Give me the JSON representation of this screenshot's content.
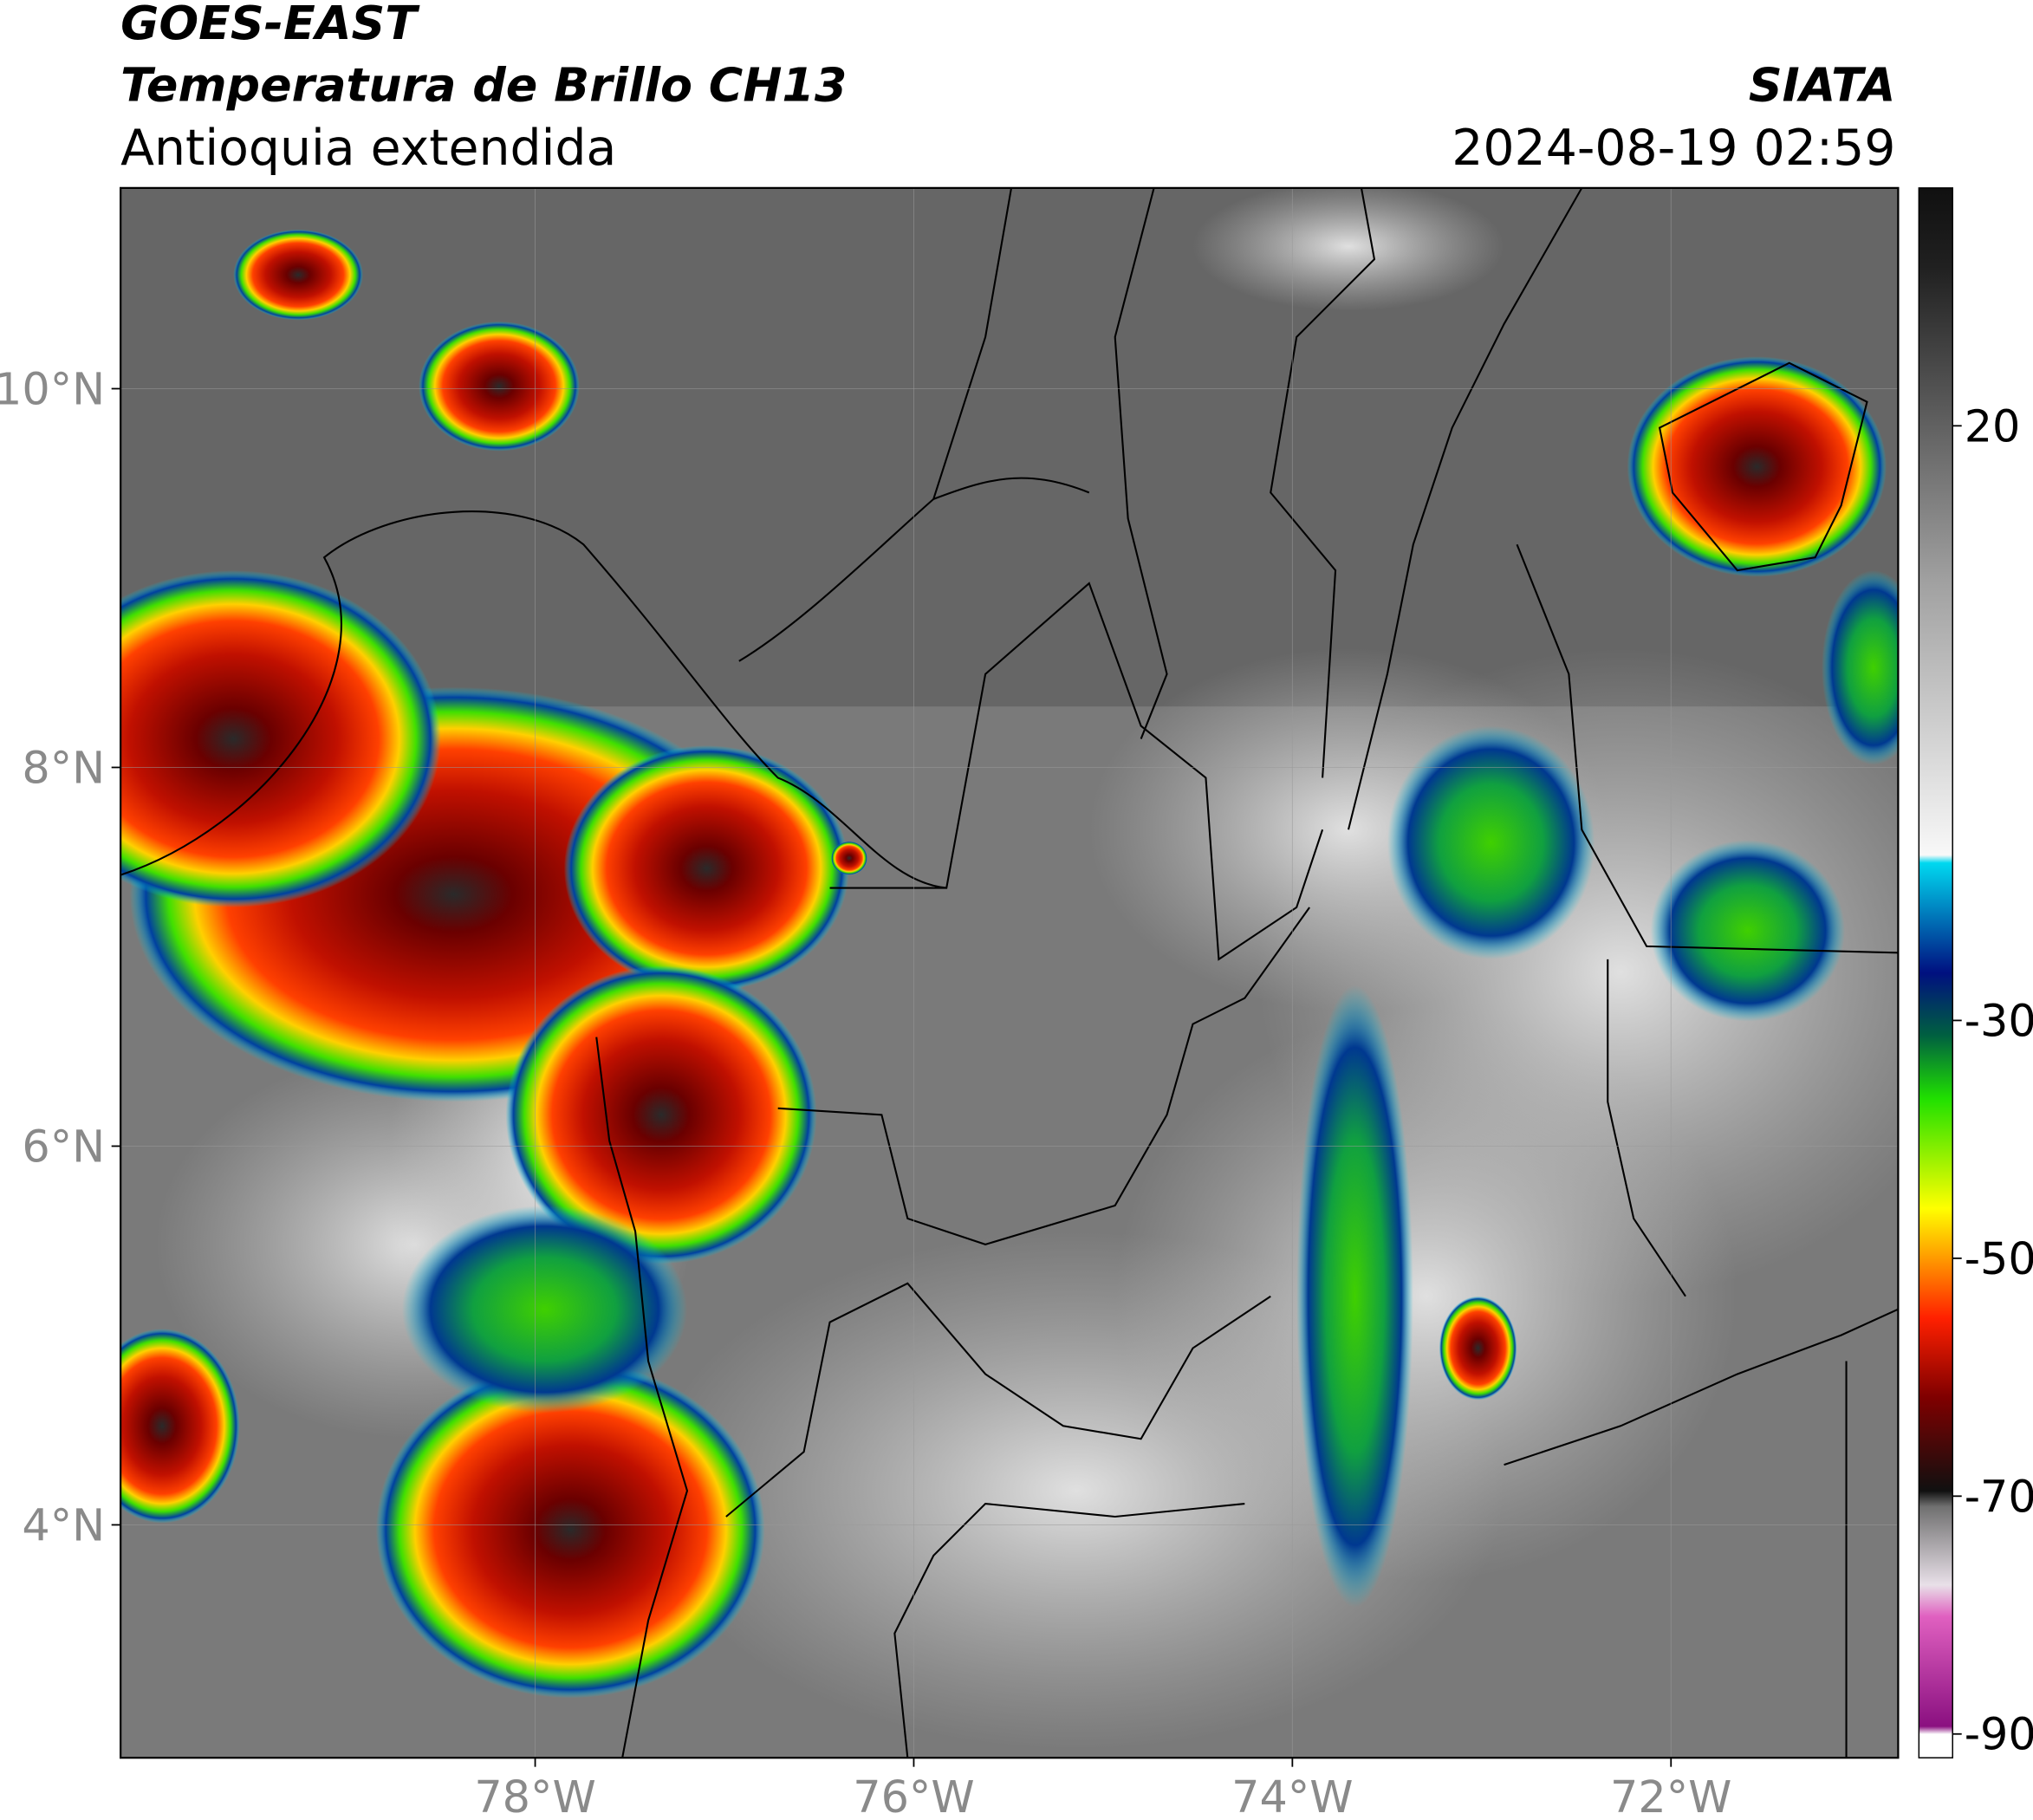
{
  "header": {
    "title": "GOES-EAST",
    "subtitle": "Temperatura de Brillo CH13",
    "region": "Antioquia extendida",
    "source": "SIATA",
    "datetime": "2024-08-19 02:59"
  },
  "map": {
    "xlim": [
      -80.19,
      -70.8
    ],
    "ylim": [
      2.77,
      11.06
    ],
    "yticks": [
      {
        "value": 10,
        "label": "10°N"
      },
      {
        "value": 8,
        "label": "8°N"
      },
      {
        "value": 6,
        "label": "6°N"
      },
      {
        "value": 4,
        "label": "4°N"
      }
    ],
    "xticks": [
      {
        "value": -78,
        "label": "78°W"
      },
      {
        "value": -76,
        "label": "76°W"
      },
      {
        "value": -74,
        "label": "74°W"
      },
      {
        "value": -72,
        "label": "72°W"
      }
    ],
    "grid": true
  },
  "colorbar": {
    "lim": [
      -92,
      40
    ],
    "ticks": [
      20,
      -30,
      -50,
      -70,
      -90
    ]
  }
}
